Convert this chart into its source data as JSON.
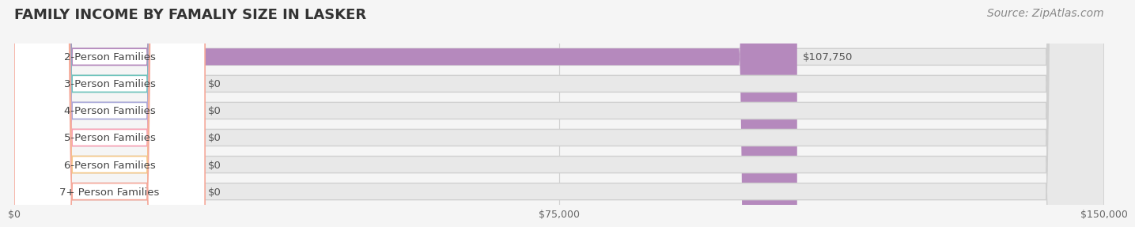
{
  "title": "FAMILY INCOME BY FAMALIY SIZE IN LASKER",
  "source": "Source: ZipAtlas.com",
  "categories": [
    "2-Person Families",
    "3-Person Families",
    "4-Person Families",
    "5-Person Families",
    "6-Person Families",
    "7+ Person Families"
  ],
  "values": [
    107750,
    0,
    0,
    0,
    0,
    0
  ],
  "bar_colors": [
    "#b589bd",
    "#6ec4bc",
    "#a9a9d9",
    "#f9a0b4",
    "#f5c98a",
    "#f5a89a"
  ],
  "label_bg_colors": [
    "#e8d8ed",
    "#d4eeed",
    "#ddddf5",
    "#fde0e8",
    "#fdebd0",
    "#fde0dc"
  ],
  "value_labels": [
    "$107,750",
    "$0",
    "$0",
    "$0",
    "$0",
    "$0"
  ],
  "xlim": [
    0,
    150000
  ],
  "xticks": [
    0,
    75000,
    150000
  ],
  "xtick_labels": [
    "$0",
    "$75,000",
    "$150,000"
  ],
  "bg_color": "#f5f5f5",
  "bar_bg_color": "#e8e8e8",
  "title_fontsize": 13,
  "source_fontsize": 10,
  "label_fontsize": 9.5,
  "value_fontsize": 9.5,
  "bar_height": 0.62
}
